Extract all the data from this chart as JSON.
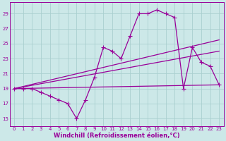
{
  "xlabel": "Windchill (Refroidissement éolien,°C)",
  "bg_color": "#cce8e8",
  "grid_color": "#aacfcf",
  "line_color": "#990099",
  "xlim": [
    -0.5,
    23.5
  ],
  "ylim": [
    14.0,
    30.5
  ],
  "xticks": [
    0,
    1,
    2,
    3,
    4,
    5,
    6,
    7,
    8,
    9,
    10,
    11,
    12,
    13,
    14,
    15,
    16,
    17,
    18,
    19,
    20,
    21,
    22,
    23
  ],
  "yticks": [
    15,
    17,
    19,
    21,
    23,
    25,
    27,
    29
  ],
  "line1_x": [
    0,
    1,
    2,
    3,
    4,
    5,
    6,
    7,
    8,
    9,
    10,
    11,
    12,
    13,
    14,
    15,
    16,
    17,
    18,
    19,
    20,
    21,
    22,
    23
  ],
  "line1_y": [
    19,
    19,
    19,
    18.5,
    18,
    17.5,
    17,
    15,
    17.5,
    20.5,
    24.5,
    24,
    23,
    26,
    29,
    29,
    29.5,
    29,
    28.5,
    19,
    24.5,
    22.5,
    22,
    19.5
  ],
  "line2_x": [
    0,
    23
  ],
  "line2_y": [
    19,
    25.5
  ],
  "line3_x": [
    0,
    23
  ],
  "line3_y": [
    19,
    24.0
  ],
  "line4_x": [
    0,
    23
  ],
  "line4_y": [
    19,
    19.5
  ],
  "markersize": 2.5,
  "linewidth": 0.9,
  "tick_fontsize": 5.0,
  "label_fontsize": 6.0
}
